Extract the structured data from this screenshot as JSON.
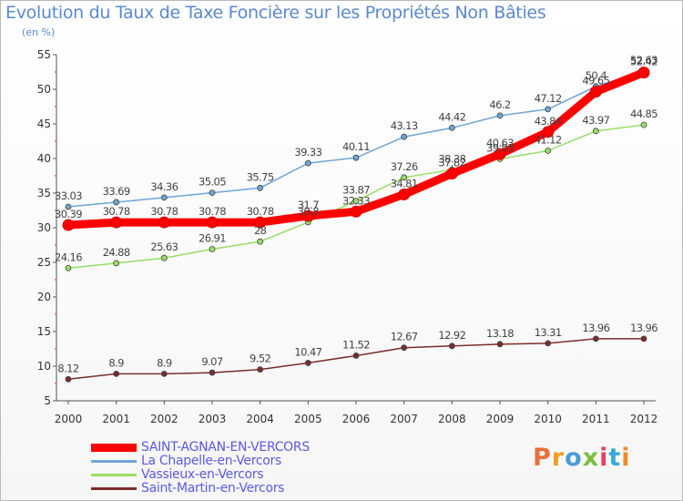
{
  "header": {
    "title": "Evolution du Taux de Taxe Foncière sur les Propriétés Non Bâties",
    "subtitle": "(en %)"
  },
  "logo": {
    "text": "Proxiti",
    "colors": [
      "#e8703a",
      "#f0a020",
      "#4a9ad8",
      "#7bbf3c",
      "#e84060",
      "#3aa8d8",
      "#f08a20"
    ]
  },
  "chart_data": {
    "type": "line",
    "x": [
      2000,
      2001,
      2002,
      2003,
      2004,
      2005,
      2006,
      2007,
      2008,
      2009,
      2010,
      2011,
      2012
    ],
    "ylim": [
      5,
      55
    ],
    "yticks": [
      5,
      10,
      15,
      20,
      25,
      30,
      35,
      40,
      45,
      50,
      55
    ],
    "grid": false,
    "legend_position": "bottom-left",
    "series": [
      {
        "name": "SAINT-AGNAN-EN-VERCORS",
        "color": "#ff0000",
        "values": [
          30.39,
          30.78,
          30.78,
          30.78,
          30.78,
          31.7,
          32.33,
          34.81,
          37.82,
          40.63,
          43.84,
          49.65,
          52.42
        ],
        "labels": [
          "30.39",
          "30.78",
          "30.78",
          "30.78",
          "30.78",
          "31.7",
          "32.33",
          "34.81",
          "37.82",
          "40.63",
          "43.84",
          "49.65",
          "52.42"
        ]
      },
      {
        "name": "La Chapelle-en-Vercors",
        "color": "#6fa5d6",
        "values": [
          33.03,
          33.69,
          34.36,
          35.05,
          35.75,
          39.33,
          40.11,
          43.13,
          44.42,
          46.2,
          47.12,
          50.4,
          52.63
        ],
        "labels": [
          "33.03",
          "33.69",
          "34.36",
          "35.05",
          "35.75",
          "39.33",
          "40.11",
          "43.13",
          "44.42",
          "46.2",
          "47.12",
          "50.4",
          "52.63"
        ]
      },
      {
        "name": "Vassieux-en-Vercors",
        "color": "#99dd66",
        "values": [
          24.16,
          24.88,
          25.63,
          26.91,
          28,
          30.8,
          33.87,
          37.26,
          38.38,
          39.93,
          41.12,
          43.97,
          44.85
        ],
        "labels": [
          "24.16",
          "24.88",
          "25.63",
          "26.91",
          "28",
          "30.8",
          "33.87",
          "37.26",
          "38.38",
          "39.93",
          "41.12",
          "43.97",
          "44.85"
        ]
      },
      {
        "name": "Saint-Martin-en-Vercors",
        "color": "#7a2d2d",
        "values": [
          8.12,
          8.9,
          8.9,
          9.07,
          9.52,
          10.47,
          11.52,
          12.67,
          12.92,
          13.18,
          13.31,
          13.96,
          13.96
        ],
        "labels": [
          "8.12",
          "8.9",
          "8.9",
          "9.07",
          "9.52",
          "10.47",
          "11.52",
          "12.67",
          "12.92",
          "13.18",
          "13.31",
          "13.96",
          "13.96"
        ]
      }
    ]
  }
}
